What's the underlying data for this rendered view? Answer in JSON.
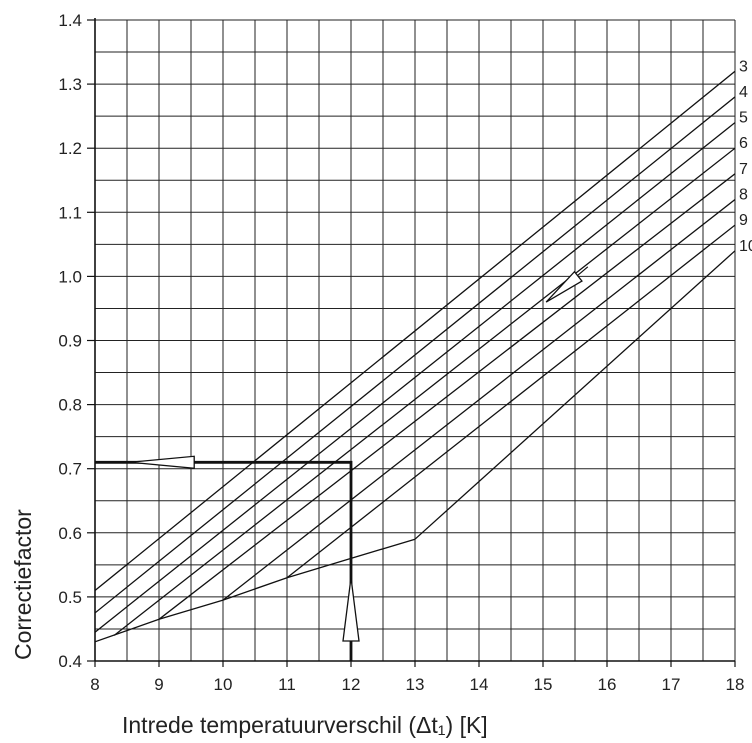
{
  "chart_data": {
    "type": "line",
    "title": "",
    "xlabel": "Intrede temperatuurverschil (Δt₁) [K]",
    "ylabel": "Correctiefactor",
    "xlim": [
      8,
      18
    ],
    "ylim": [
      0.4,
      1.4
    ],
    "grid": true,
    "x_ticks": [
      "8",
      "9",
      "10",
      "11",
      "12",
      "13",
      "14",
      "15",
      "16",
      "17",
      "18"
    ],
    "y_ticks": [
      "0.4",
      "0.5",
      "0.6",
      "0.7",
      "0.8",
      "0.9",
      "1.0",
      "1.1",
      "1.2",
      "1.3",
      "1.4"
    ],
    "series": [
      {
        "name": "3",
        "points": [
          [
            8,
            0.51
          ],
          [
            18,
            1.32
          ]
        ]
      },
      {
        "name": "4",
        "points": [
          [
            8,
            0.475
          ],
          [
            18,
            1.28
          ]
        ]
      },
      {
        "name": "5",
        "points": [
          [
            8,
            0.445
          ],
          [
            18,
            1.24
          ]
        ]
      },
      {
        "name": "6",
        "points": [
          [
            8.3,
            0.44
          ],
          [
            18,
            1.2
          ]
        ]
      },
      {
        "name": "7",
        "points": [
          [
            9,
            0.465
          ],
          [
            18,
            1.16
          ]
        ]
      },
      {
        "name": "8",
        "points": [
          [
            10,
            0.495
          ],
          [
            18,
            1.12
          ]
        ]
      },
      {
        "name": "9",
        "points": [
          [
            11,
            0.53
          ],
          [
            18,
            1.08
          ]
        ]
      },
      {
        "name": "10",
        "points": [
          [
            13,
            0.59
          ],
          [
            18,
            1.04
          ]
        ]
      },
      {
        "name": "boundary",
        "points": [
          [
            8,
            0.43
          ],
          [
            9,
            0.465
          ],
          [
            10,
            0.495
          ],
          [
            11,
            0.53
          ],
          [
            12,
            0.56
          ],
          [
            13,
            0.59
          ]
        ]
      }
    ],
    "example": {
      "x": 12,
      "y": 0.71,
      "reading_path": [
        [
          12,
          0.4
        ],
        [
          12,
          0.71
        ],
        [
          8,
          0.71
        ]
      ]
    }
  }
}
